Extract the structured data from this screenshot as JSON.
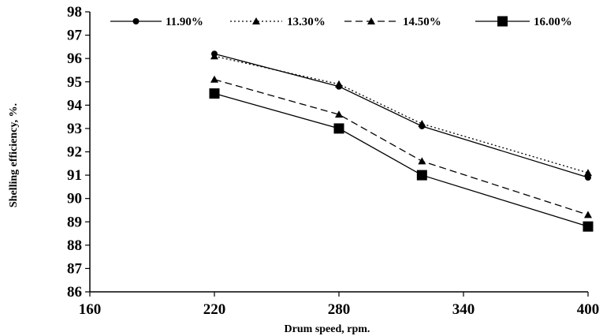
{
  "chart_data": {
    "type": "line",
    "title": "",
    "xlabel": "Drum speed, rpm.",
    "ylabel": "Shelling efficiency, %.",
    "xlim": [
      160,
      400
    ],
    "ylim": [
      86,
      98
    ],
    "xticks": [
      160,
      220,
      280,
      340,
      400
    ],
    "yticks": [
      86,
      87,
      88,
      89,
      90,
      91,
      92,
      93,
      94,
      95,
      96,
      97,
      98
    ],
    "grid": false,
    "legend_position": "top",
    "x": [
      220,
      280,
      320,
      400
    ],
    "series": [
      {
        "name": "11.90%",
        "values": [
          96.2,
          94.8,
          93.1,
          90.9
        ],
        "line_style": "solid",
        "marker": "circle"
      },
      {
        "name": "13.30%",
        "values": [
          96.1,
          94.9,
          93.2,
          91.1
        ],
        "line_style": "dotted",
        "marker": "triangle"
      },
      {
        "name": "14.50%",
        "values": [
          95.1,
          93.6,
          91.6,
          89.3
        ],
        "line_style": "dashed",
        "marker": "triangle"
      },
      {
        "name": "16.00%",
        "values": [
          94.5,
          93.0,
          91.0,
          88.8
        ],
        "line_style": "solid",
        "marker": "square"
      }
    ],
    "colors": {
      "line": "#000000",
      "background": "#ffffff"
    }
  }
}
